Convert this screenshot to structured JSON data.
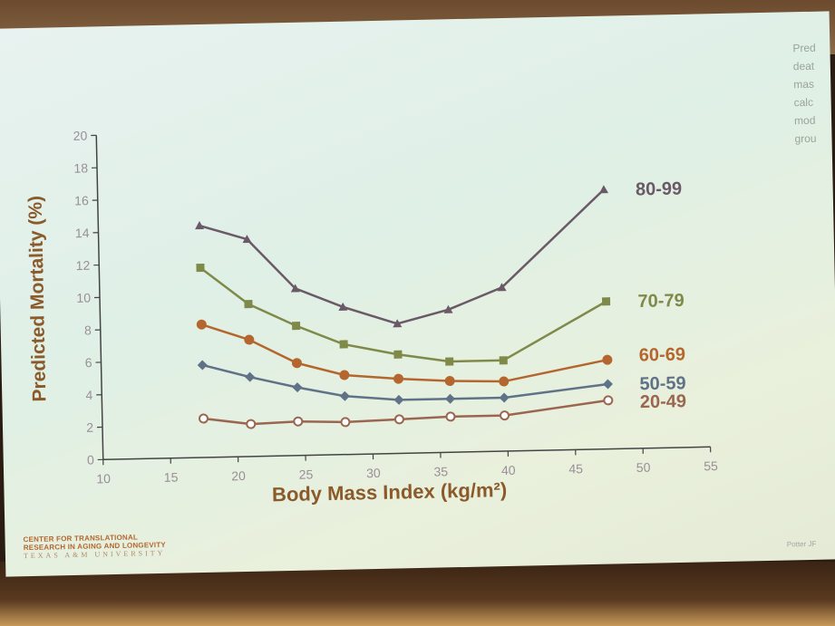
{
  "side_text": [
    "Pred",
    "deat",
    "mas",
    "calc",
    "mod",
    "grou"
  ],
  "logo": {
    "line1": "CENTER FOR TRANSLATIONAL",
    "line2": "RESEARCH IN AGING AND LONGEVITY",
    "line3": "TEXAS A&M UNIVERSITY"
  },
  "citation": "Potter JF",
  "colors": {
    "axis": "#444444",
    "ticks": "#9a8f98",
    "label": "#8a5a2a",
    "series_80_99": "#6a5a68",
    "series_70_79": "#7f8a4a",
    "series_60_69": "#b4662e",
    "series_50_59": "#5f7288",
    "series_20_49": "#9a6650"
  },
  "chart_data": {
    "type": "line",
    "xlabel": "Body Mass Index (kg/m²)",
    "ylabel": "Predicted Mortality (%)",
    "xlim": [
      10,
      55
    ],
    "ylim": [
      0,
      20
    ],
    "xticks": [
      10,
      15,
      20,
      25,
      30,
      35,
      40,
      45,
      50,
      55
    ],
    "yticks": [
      0,
      2,
      4,
      6,
      8,
      10,
      12,
      14,
      16,
      18,
      20
    ],
    "grid": false,
    "legend": "inline labels at right end of each line",
    "series": [
      {
        "name": "80-99",
        "marker": "triangle",
        "x": [
          17.5,
          21,
          24.5,
          28,
          32,
          35.8,
          39.8,
          47.5
        ],
        "y": [
          14.3,
          13.4,
          10.3,
          9.1,
          8.0,
          8.8,
          10.1,
          16.0
        ]
      },
      {
        "name": "70-79",
        "marker": "square",
        "x": [
          17.5,
          21,
          24.5,
          28,
          32,
          35.8,
          39.8,
          47.5
        ],
        "y": [
          11.7,
          9.4,
          8.0,
          6.8,
          6.1,
          5.6,
          5.6,
          9.1
        ]
      },
      {
        "name": "60-69",
        "marker": "circle",
        "x": [
          17.5,
          21,
          24.5,
          28,
          32,
          35.8,
          39.8,
          47.5
        ],
        "y": [
          8.2,
          7.2,
          5.7,
          4.9,
          4.6,
          4.4,
          4.3,
          5.5
        ]
      },
      {
        "name": "50-59",
        "marker": "diamond",
        "x": [
          17.5,
          21,
          24.5,
          28,
          32,
          35.8,
          39.8,
          47.5
        ],
        "y": [
          5.7,
          4.9,
          4.2,
          3.6,
          3.3,
          3.3,
          3.3,
          4.0
        ]
      },
      {
        "name": "20-49",
        "marker": "open-circle",
        "x": [
          17.5,
          21,
          24.5,
          28,
          32,
          35.8,
          39.8,
          47.5
        ],
        "y": [
          2.4,
          2.0,
          2.1,
          2.0,
          2.1,
          2.2,
          2.2,
          3.0
        ]
      }
    ]
  }
}
